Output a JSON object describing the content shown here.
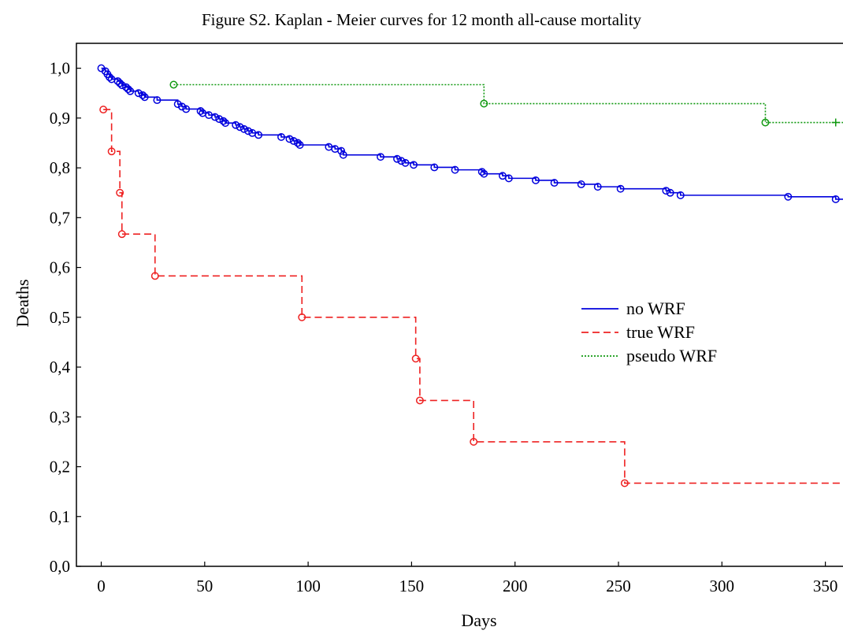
{
  "chart_data": {
    "type": "line",
    "title": "Figure S2. Kaplan - Meier curves for 12 month all-cause mortality",
    "xlabel": "Days",
    "ylabel": "Deaths",
    "xlim": [
      -12,
      365
    ],
    "ylim": [
      0,
      1.05
    ],
    "xticks": [
      0,
      50,
      100,
      150,
      200,
      250,
      300,
      350
    ],
    "xtick_labels": [
      "0",
      "50",
      "100",
      "150",
      "200",
      "250",
      "300",
      "350"
    ],
    "yticks": [
      0,
      0.1,
      0.2,
      0.3,
      0.4,
      0.5,
      0.6,
      0.7,
      0.8,
      0.9,
      1.0
    ],
    "ytick_labels": [
      "0,0",
      "0,1",
      "0,2",
      "0,3",
      "0,4",
      "0,5",
      "0,6",
      "0,7",
      "0,8",
      "0,9",
      "1,0"
    ],
    "legend_position": "center-right",
    "grid": false,
    "series": [
      {
        "name": "no WRF",
        "color": "#0000dd",
        "dash": "solid",
        "steps": [
          [
            0,
            1.0
          ],
          [
            2,
            0.994
          ],
          [
            3,
            0.988
          ],
          [
            4,
            0.982
          ],
          [
            5,
            0.978
          ],
          [
            8,
            0.974
          ],
          [
            9,
            0.97
          ],
          [
            10,
            0.966
          ],
          [
            12,
            0.962
          ],
          [
            13,
            0.958
          ],
          [
            14,
            0.954
          ],
          [
            18,
            0.95
          ],
          [
            20,
            0.946
          ],
          [
            21,
            0.942
          ],
          [
            27,
            0.936
          ],
          [
            37,
            0.928
          ],
          [
            39,
            0.923
          ],
          [
            41,
            0.918
          ],
          [
            48,
            0.914
          ],
          [
            49,
            0.91
          ],
          [
            52,
            0.906
          ],
          [
            55,
            0.902
          ],
          [
            57,
            0.898
          ],
          [
            59,
            0.894
          ],
          [
            60,
            0.89
          ],
          [
            65,
            0.886
          ],
          [
            67,
            0.882
          ],
          [
            69,
            0.878
          ],
          [
            71,
            0.874
          ],
          [
            73,
            0.87
          ],
          [
            76,
            0.866
          ],
          [
            87,
            0.862
          ],
          [
            91,
            0.858
          ],
          [
            93,
            0.854
          ],
          [
            95,
            0.85
          ],
          [
            96,
            0.846
          ],
          [
            110,
            0.842
          ],
          [
            113,
            0.838
          ],
          [
            116,
            0.834
          ],
          [
            117,
            0.826
          ],
          [
            135,
            0.822
          ],
          [
            143,
            0.818
          ],
          [
            145,
            0.814
          ],
          [
            147,
            0.81
          ],
          [
            151,
            0.806
          ],
          [
            161,
            0.801
          ],
          [
            171,
            0.796
          ],
          [
            184,
            0.792
          ],
          [
            185,
            0.788
          ],
          [
            194,
            0.784
          ],
          [
            197,
            0.779
          ],
          [
            210,
            0.775
          ],
          [
            219,
            0.77
          ],
          [
            232,
            0.767
          ],
          [
            240,
            0.762
          ],
          [
            251,
            0.758
          ],
          [
            273,
            0.754
          ],
          [
            275,
            0.75
          ],
          [
            280,
            0.745
          ],
          [
            332,
            0.742
          ],
          [
            355,
            0.737
          ],
          [
            361,
            0.732
          ],
          [
            365,
            0.732
          ]
        ],
        "censored": [
          [
            0,
            1.0
          ],
          [
            2,
            0.994
          ],
          [
            3,
            0.988
          ],
          [
            4,
            0.982
          ],
          [
            5,
            0.978
          ],
          [
            8,
            0.974
          ],
          [
            9,
            0.97
          ],
          [
            10,
            0.966
          ],
          [
            12,
            0.962
          ],
          [
            13,
            0.958
          ],
          [
            14,
            0.954
          ],
          [
            18,
            0.95
          ],
          [
            20,
            0.946
          ],
          [
            21,
            0.942
          ],
          [
            27,
            0.936
          ],
          [
            37,
            0.928
          ],
          [
            39,
            0.923
          ],
          [
            41,
            0.918
          ],
          [
            48,
            0.914
          ],
          [
            49,
            0.91
          ],
          [
            52,
            0.906
          ],
          [
            55,
            0.902
          ],
          [
            57,
            0.898
          ],
          [
            59,
            0.894
          ],
          [
            60,
            0.89
          ],
          [
            65,
            0.886
          ],
          [
            67,
            0.882
          ],
          [
            69,
            0.878
          ],
          [
            71,
            0.874
          ],
          [
            73,
            0.87
          ],
          [
            76,
            0.866
          ],
          [
            87,
            0.862
          ],
          [
            91,
            0.858
          ],
          [
            93,
            0.854
          ],
          [
            95,
            0.85
          ],
          [
            96,
            0.846
          ],
          [
            110,
            0.842
          ],
          [
            113,
            0.838
          ],
          [
            116,
            0.834
          ],
          [
            117,
            0.826
          ],
          [
            135,
            0.822
          ],
          [
            143,
            0.818
          ],
          [
            145,
            0.814
          ],
          [
            147,
            0.81
          ],
          [
            151,
            0.806
          ],
          [
            161,
            0.801
          ],
          [
            171,
            0.796
          ],
          [
            184,
            0.792
          ],
          [
            185,
            0.788
          ],
          [
            194,
            0.784
          ],
          [
            197,
            0.779
          ],
          [
            210,
            0.775
          ],
          [
            219,
            0.77
          ],
          [
            232,
            0.767
          ],
          [
            240,
            0.762
          ],
          [
            251,
            0.758
          ],
          [
            273,
            0.754
          ],
          [
            275,
            0.75
          ],
          [
            280,
            0.745
          ],
          [
            332,
            0.742
          ],
          [
            355,
            0.737
          ],
          [
            361,
            0.732
          ]
        ],
        "censored_marker": "circle"
      },
      {
        "name": "true WRF",
        "color": "#ee2222",
        "dash": "dashed",
        "steps": [
          [
            1,
            0.917
          ],
          [
            5,
            0.833
          ],
          [
            9,
            0.75
          ],
          [
            10,
            0.667
          ],
          [
            26,
            0.583
          ],
          [
            97,
            0.5
          ],
          [
            152,
            0.417
          ],
          [
            154,
            0.333
          ],
          [
            180,
            0.25
          ],
          [
            253,
            0.167
          ],
          [
            365,
            0.167
          ]
        ],
        "censored": [
          [
            1,
            0.917
          ],
          [
            5,
            0.833
          ],
          [
            9,
            0.75
          ],
          [
            10,
            0.667
          ],
          [
            26,
            0.583
          ],
          [
            97,
            0.5
          ],
          [
            152,
            0.417
          ],
          [
            154,
            0.333
          ],
          [
            180,
            0.25
          ],
          [
            253,
            0.167
          ]
        ],
        "censored_marker": "circle"
      },
      {
        "name": "pseudo WRF",
        "color": "#119911",
        "dash": "dotted",
        "steps": [
          [
            35,
            0.967
          ],
          [
            185,
            0.929
          ],
          [
            321,
            0.891
          ],
          [
            365,
            0.891
          ]
        ],
        "censored": [
          [
            35,
            0.967
          ],
          [
            185,
            0.929
          ],
          [
            321,
            0.891
          ]
        ],
        "censored_marker": "circle",
        "plus_markers": [
          [
            355,
            0.891
          ]
        ]
      }
    ]
  }
}
